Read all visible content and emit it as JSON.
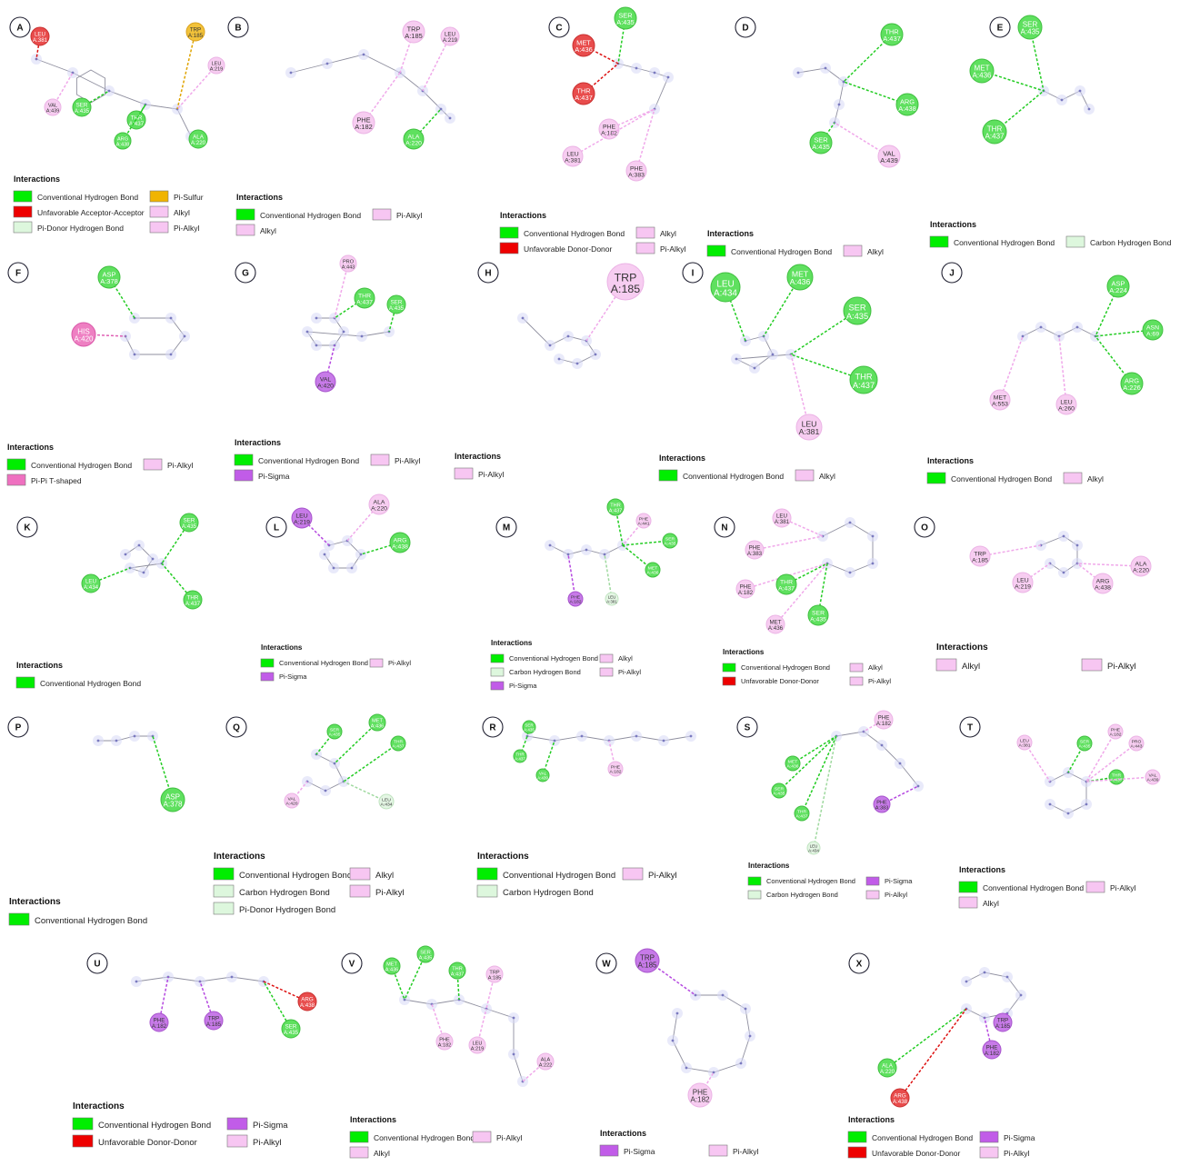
{
  "palette": {
    "Conventional Hydrogen Bond": "#00ee00",
    "Unfavorable Acceptor-Acceptor": "#ee0000",
    "Unfavorable Donor-Donor": "#ee0000",
    "Pi-Donor Hydrogen Bond": "#ddf7dd",
    "Carbon Hydrogen Bond": "#ddf7dd",
    "Pi-Sulfur": "#f0b400",
    "Alkyl": "#f7c6f2",
    "Pi-Alkyl": "#f7c6f2",
    "Pi-Sigma": "#c15ce8",
    "Pi-Pi T-shaped": "#ef70c0"
  },
  "legend_heading": "Interactions",
  "panels": [
    {
      "letter": "A",
      "legend": [
        "Conventional Hydrogen Bond",
        "Pi-Sulfur",
        "Unfavorable Acceptor-Acceptor",
        "Alkyl",
        "Pi-Donor Hydrogen Bond",
        "Pi-Alkyl"
      ],
      "residues": [
        [
          "LEU A:381",
          "red"
        ],
        [
          "TRP A:185",
          "orange"
        ],
        [
          "LEU A:219",
          "pink"
        ],
        [
          "VAL A:439",
          "pink"
        ],
        [
          "SER A:435",
          "green"
        ],
        [
          "THR A:437",
          "green"
        ],
        [
          "ARG A:438",
          "green"
        ],
        [
          "ALA A:220",
          "green"
        ]
      ]
    },
    {
      "letter": "B",
      "legend": [
        "Conventional Hydrogen Bond",
        "Pi-Alkyl",
        "Alkyl"
      ],
      "residues": [
        [
          "TRP A:185",
          "pink"
        ],
        [
          "LEU A:219",
          "pink"
        ],
        [
          "PHE A:182",
          "pink"
        ],
        [
          "ALA A:220",
          "green"
        ]
      ]
    },
    {
      "letter": "C",
      "legend": [
        "Conventional Hydrogen Bond",
        "Alkyl",
        "Unfavorable Donor-Donor",
        "Pi-Alkyl"
      ],
      "residues": [
        [
          "SER A:435",
          "green"
        ],
        [
          "MET A:436",
          "red"
        ],
        [
          "THR A:437",
          "red"
        ],
        [
          "PHE A:182",
          "pink"
        ],
        [
          "LEU A:381",
          "pink"
        ],
        [
          "PHE A:383",
          "pink"
        ]
      ]
    },
    {
      "letter": "D",
      "legend": [
        "Conventional Hydrogen Bond",
        "Alkyl"
      ],
      "residues": [
        [
          "THR A:437",
          "green"
        ],
        [
          "ARG A:438",
          "green"
        ],
        [
          "SER A:435",
          "green"
        ],
        [
          "VAL A:439",
          "pink"
        ]
      ]
    },
    {
      "letter": "E",
      "legend": [
        "Conventional Hydrogen Bond",
        "Carbon Hydrogen Bond"
      ],
      "residues": [
        [
          "SER A:435",
          "green"
        ],
        [
          "MET A:436",
          "green"
        ],
        [
          "THR A:437",
          "green"
        ]
      ]
    },
    {
      "letter": "F",
      "legend": [
        "Conventional Hydrogen Bond",
        "Pi-Alkyl",
        "Pi-Pi T-shaped"
      ],
      "residues": [
        [
          "ASP A:378",
          "green"
        ],
        [
          "HIS A:420",
          "magenta"
        ]
      ]
    },
    {
      "letter": "G",
      "legend": [
        "Conventional Hydrogen Bond",
        "Pi-Alkyl",
        "Pi-Sigma"
      ],
      "residues": [
        [
          "PRO A:443",
          "pink"
        ],
        [
          "THR A:437",
          "green"
        ],
        [
          "SER A:435",
          "green"
        ],
        [
          "VAL A:420",
          "purple"
        ]
      ]
    },
    {
      "letter": "H",
      "legend": [
        "Pi-Alkyl"
      ],
      "residues": [
        [
          "TRP A:185",
          "pink"
        ]
      ]
    },
    {
      "letter": "I",
      "legend": [
        "Conventional Hydrogen Bond",
        "Alkyl"
      ],
      "residues": [
        [
          "LEU A:434",
          "green"
        ],
        [
          "MET A:436",
          "green"
        ],
        [
          "SER A:435",
          "green"
        ],
        [
          "THR A:437",
          "green"
        ],
        [
          "LEU A:381",
          "pink"
        ]
      ]
    },
    {
      "letter": "J",
      "legend": [
        "Conventional Hydrogen Bond",
        "Alkyl"
      ],
      "residues": [
        [
          "ASP A:224",
          "green"
        ],
        [
          "ASN A:69",
          "green"
        ],
        [
          "ARG A:226",
          "green"
        ],
        [
          "MET A:553",
          "pink"
        ],
        [
          "LEU A:260",
          "pink"
        ]
      ]
    },
    {
      "letter": "K",
      "legend": [
        "Conventional Hydrogen Bond"
      ],
      "residues": [
        [
          "SER A:435",
          "green"
        ],
        [
          "LEU A:434",
          "green"
        ],
        [
          "THR A:437",
          "green"
        ]
      ]
    },
    {
      "letter": "L",
      "legend": [
        "Conventional Hydrogen Bond",
        "Pi-Alkyl",
        "Pi-Sigma"
      ],
      "residues": [
        [
          "LEU A:219",
          "purple"
        ],
        [
          "ALA A:220",
          "pink"
        ],
        [
          "ARG A:438",
          "green"
        ]
      ]
    },
    {
      "letter": "M",
      "legend": [
        "Conventional Hydrogen Bond",
        "Alkyl",
        "Carbon Hydrogen Bond",
        "Pi-Alkyl",
        "Pi-Sigma"
      ],
      "residues": [
        [
          "THR A:437",
          "green"
        ],
        [
          "PHE A:441",
          "pink"
        ],
        [
          "SER A:435",
          "green"
        ],
        [
          "MET A:436",
          "green"
        ],
        [
          "PHE A:182",
          "purple"
        ],
        [
          "LEU A:381",
          "pale"
        ]
      ]
    },
    {
      "letter": "N",
      "legend": [
        "Conventional Hydrogen Bond",
        "Alkyl",
        "Unfavorable Donor-Donor",
        "Pi-Alkyl"
      ],
      "residues": [
        [
          "LEU A:381",
          "pink"
        ],
        [
          "PHE A:383",
          "pink"
        ],
        [
          "PHE A:182",
          "pink"
        ],
        [
          "THR A:437",
          "green"
        ],
        [
          "MET A:436",
          "pink"
        ],
        [
          "SER A:435",
          "green"
        ]
      ]
    },
    {
      "letter": "O",
      "legend": [
        "Alkyl",
        "Pi-Alkyl"
      ],
      "residues": [
        [
          "TRP A:185",
          "pink"
        ],
        [
          "LEU A:219",
          "pink"
        ],
        [
          "ARG A:438",
          "pink"
        ],
        [
          "ALA A:220",
          "pink"
        ]
      ]
    },
    {
      "letter": "P",
      "legend": [
        "Conventional Hydrogen Bond"
      ],
      "residues": [
        [
          "ASP A:378",
          "green"
        ]
      ]
    },
    {
      "letter": "Q",
      "legend": [
        "Conventional Hydrogen Bond",
        "Alkyl",
        "Carbon Hydrogen Bond",
        "Pi-Alkyl",
        "Pi-Donor Hydrogen Bond"
      ],
      "residues": [
        [
          "SER A:435",
          "green"
        ],
        [
          "MET A:436",
          "green"
        ],
        [
          "THR A:437",
          "green"
        ],
        [
          "VAL A:420",
          "pink"
        ],
        [
          "LEU A:434",
          "pale"
        ]
      ]
    },
    {
      "letter": "R",
      "legend": [
        "Conventional Hydrogen Bond",
        "Pi-Alkyl",
        "Carbon Hydrogen Bond"
      ],
      "residues": [
        [
          "SER A:435",
          "green"
        ],
        [
          "THR A:437",
          "green"
        ],
        [
          "VAL A:439",
          "green"
        ],
        [
          "PHE A:182",
          "pink"
        ]
      ]
    },
    {
      "letter": "S",
      "legend": [
        "Conventional Hydrogen Bond",
        "Pi-Sigma",
        "Carbon Hydrogen Bond",
        "Pi-Alkyl"
      ],
      "residues": [
        [
          "PHE A:182",
          "pink"
        ],
        [
          "MET A:436",
          "green"
        ],
        [
          "SER A:435",
          "green"
        ],
        [
          "THR A:437",
          "green"
        ],
        [
          "PHE A:383",
          "purple"
        ],
        [
          "LEU A:434",
          "pale"
        ]
      ]
    },
    {
      "letter": "T",
      "legend": [
        "Conventional Hydrogen Bond",
        "Pi-Alkyl",
        "Alkyl"
      ],
      "residues": [
        [
          "LEU A:381",
          "pink"
        ],
        [
          "SER A:435",
          "green"
        ],
        [
          "PHE A:182",
          "pink"
        ],
        [
          "PRO A:443",
          "pink"
        ],
        [
          "THR A:437",
          "green"
        ],
        [
          "VAL A:439",
          "pink"
        ]
      ]
    },
    {
      "letter": "U",
      "legend": [
        "Conventional Hydrogen Bond",
        "Pi-Sigma",
        "Unfavorable Donor-Donor",
        "Pi-Alkyl"
      ],
      "residues": [
        [
          "PHE A:182",
          "purple"
        ],
        [
          "TRP A:185",
          "purple"
        ],
        [
          "ARG A:438",
          "red"
        ],
        [
          "SER A:435",
          "green"
        ]
      ]
    },
    {
      "letter": "V",
      "legend": [
        "Conventional Hydrogen Bond",
        "Pi-Alkyl",
        "Alkyl"
      ],
      "residues": [
        [
          "MET A:436",
          "green"
        ],
        [
          "SER A:435",
          "green"
        ],
        [
          "THR A:437",
          "green"
        ],
        [
          "TRP A:185",
          "pink"
        ],
        [
          "PHE A:182",
          "pink"
        ],
        [
          "LEU A:219",
          "pink"
        ],
        [
          "ALA A:222",
          "pink"
        ]
      ]
    },
    {
      "letter": "W",
      "legend": [
        "Pi-Sigma",
        "Pi-Alkyl"
      ],
      "residues": [
        [
          "TRP A:185",
          "purple"
        ],
        [
          "PHE A:182",
          "pink"
        ]
      ]
    },
    {
      "letter": "X",
      "legend": [
        "Conventional Hydrogen Bond",
        "Pi-Sigma",
        "Unfavorable Donor-Donor",
        "Pi-Alkyl"
      ],
      "residues": [
        [
          "TRP A:185",
          "purple"
        ],
        [
          "PHE A:182",
          "purple"
        ],
        [
          "ALA A:220",
          "green"
        ],
        [
          "ARG A:438",
          "red"
        ]
      ]
    }
  ]
}
